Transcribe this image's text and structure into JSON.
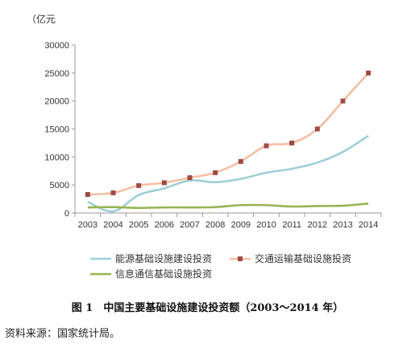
{
  "chart_data": {
    "type": "line",
    "unit": "（亿元",
    "categories": [
      "2003",
      "2004",
      "2005",
      "2006",
      "2007",
      "2008",
      "2009",
      "2010",
      "2011",
      "2012",
      "2013",
      "2014"
    ],
    "ylim": [
      0,
      30000
    ],
    "yticks": [
      0,
      5000,
      10000,
      15000,
      20000,
      25000,
      30000
    ],
    "grid": false,
    "legend_position": "bottom",
    "series": [
      {
        "name": "能源基础设施建设投资",
        "color": "#9ecfd6",
        "marker": "none",
        "values": [
          2000,
          300,
          3200,
          4400,
          5800,
          5500,
          6100,
          7200,
          7900,
          9000,
          10900,
          13800
        ]
      },
      {
        "name": "交通运输基础设施投资",
        "color": "#f3bfa3",
        "marker_color": "#a04a45",
        "marker": "square",
        "values": [
          3300,
          3600,
          4900,
          5400,
          6300,
          7200,
          9200,
          12000,
          12500,
          15000,
          20000,
          25000
        ]
      },
      {
        "name": "信息通信基础设施投资",
        "color": "#97b454",
        "marker": "none",
        "values": [
          1000,
          1050,
          900,
          1000,
          1000,
          1050,
          1400,
          1400,
          1150,
          1250,
          1300,
          1700
        ]
      }
    ]
  },
  "caption": "图 1　中国主要基础设施建设投资额（2003～2014 年）",
  "source": "资料来源：国家统计局。"
}
